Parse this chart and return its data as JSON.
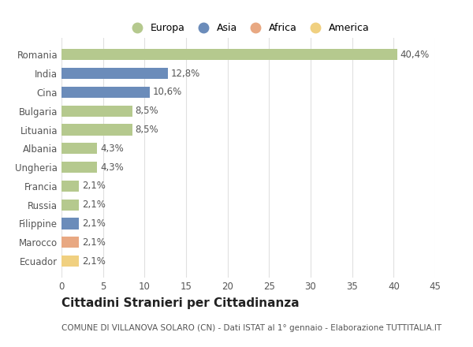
{
  "countries": [
    "Romania",
    "India",
    "Cina",
    "Bulgaria",
    "Lituania",
    "Albania",
    "Ungheria",
    "Francia",
    "Russia",
    "Filippine",
    "Marocco",
    "Ecuador"
  ],
  "values": [
    40.4,
    12.8,
    10.6,
    8.5,
    8.5,
    4.3,
    4.3,
    2.1,
    2.1,
    2.1,
    2.1,
    2.1
  ],
  "labels": [
    "40,4%",
    "12,8%",
    "10,6%",
    "8,5%",
    "8,5%",
    "4,3%",
    "4,3%",
    "2,1%",
    "2,1%",
    "2,1%",
    "2,1%",
    "2,1%"
  ],
  "colors": [
    "#b5c98e",
    "#6b8cba",
    "#6b8cba",
    "#b5c98e",
    "#b5c98e",
    "#b5c98e",
    "#b5c98e",
    "#b5c98e",
    "#b5c98e",
    "#6b8cba",
    "#e8a882",
    "#f0d080"
  ],
  "legend": [
    {
      "label": "Europa",
      "color": "#b5c98e"
    },
    {
      "label": "Asia",
      "color": "#6b8cba"
    },
    {
      "label": "Africa",
      "color": "#e8a882"
    },
    {
      "label": "America",
      "color": "#f0d080"
    }
  ],
  "xlim": [
    0,
    45
  ],
  "xticks": [
    0,
    5,
    10,
    15,
    20,
    25,
    30,
    35,
    40,
    45
  ],
  "title": "Cittadini Stranieri per Cittadinanza",
  "subtitle": "COMUNE DI VILLANOVA SOLARO (CN) - Dati ISTAT al 1° gennaio - Elaborazione TUTTITALIA.IT",
  "bg_color": "#ffffff",
  "grid_color": "#e0e0e0",
  "bar_label_fontsize": 8.5,
  "ytick_fontsize": 8.5,
  "xtick_fontsize": 8.5,
  "title_fontsize": 11,
  "subtitle_fontsize": 7.5,
  "bar_height": 0.6
}
